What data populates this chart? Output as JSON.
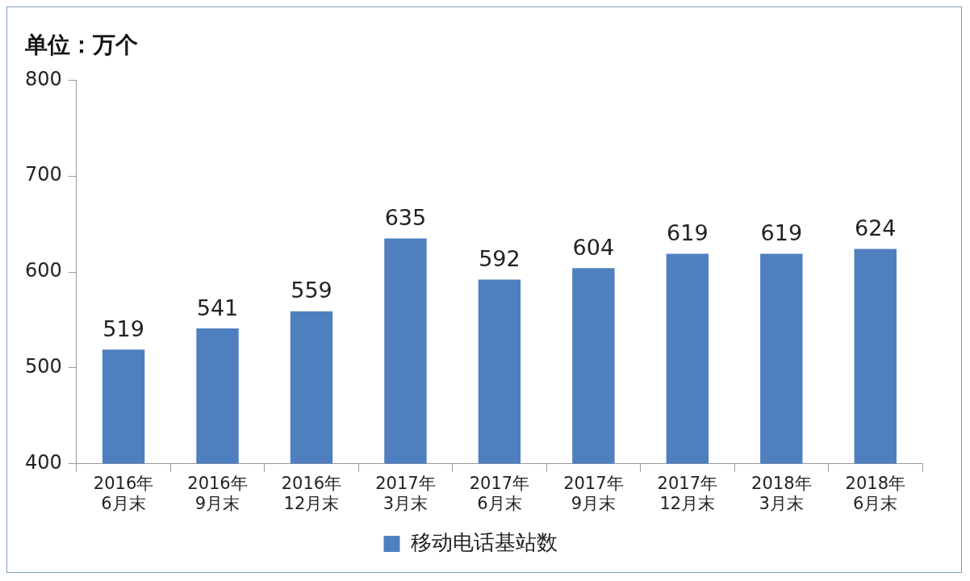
{
  "chart_data": {
    "type": "bar",
    "ylabel": "单位：万个",
    "categories": [
      "2016年\n6月末",
      "2016年\n9月末",
      "2016年\n12月末",
      "2017年\n3月末",
      "2017年\n6月末",
      "2017年\n9月末",
      "2017年\n12月末",
      "2018年\n3月末",
      "2018年\n6月末"
    ],
    "series": [
      {
        "name": "移动电话基站数",
        "color": "#4f7fbf",
        "values": [
          519,
          541,
          559,
          635,
          592,
          604,
          619,
          619,
          624
        ]
      }
    ],
    "ylim": [
      400,
      800
    ],
    "yticks": [
      400,
      500,
      600,
      700,
      800
    ],
    "data_labels": true,
    "legend": "bottom"
  }
}
